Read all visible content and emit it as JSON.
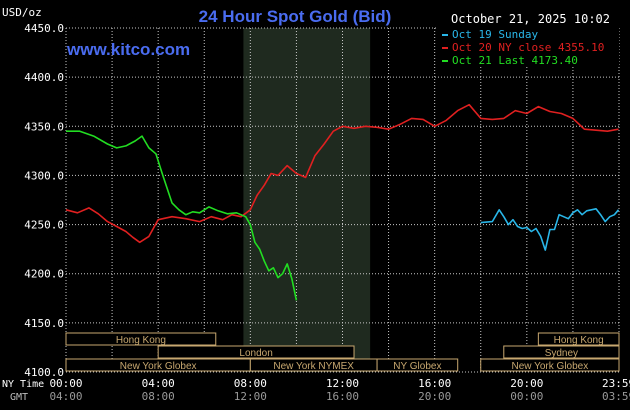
{
  "colors": {
    "background": "#000000",
    "grid": "#c8c8c8",
    "text": "#ffffff",
    "title": "#4a6cf0",
    "site": "#4a6cf0",
    "nymex_band": "#1f2a1f",
    "session_fill": "#000000",
    "session_border": "#c8a870",
    "session_text": "#c8a870"
  },
  "chart_data": {
    "type": "line",
    "title": "24 Hour Spot Gold (Bid)",
    "site": "www.kitco.com",
    "timestamp": "October 21, 2025 10:02",
    "y_unit": "USD/oz",
    "ylim": [
      4100,
      4450
    ],
    "y_ticks": [
      "4450.0",
      "4400.0",
      "4350.0",
      "4300.0",
      "4250.0",
      "4200.0",
      "4150.0",
      "4100.0"
    ],
    "y_tick_values": [
      4450,
      4400,
      4350,
      4300,
      4250,
      4200,
      4150,
      4100
    ],
    "x_hours": [
      0,
      4,
      8,
      12,
      16,
      20,
      23.983
    ],
    "x_ticks_ny": [
      "00:00",
      "04:00",
      "08:00",
      "12:00",
      "16:00",
      "20:00",
      "23:59"
    ],
    "x_ticks_gmt": [
      "04:00",
      "08:00",
      "12:00",
      "16:00",
      "20:00",
      "00:00",
      "03:59"
    ],
    "x_row_label_ny": "NY Time",
    "x_row_label_gmt": "GMT",
    "grid": true,
    "legend_placement": "top-right",
    "highlight_band_hours": [
      7.7,
      13.2
    ],
    "series": [
      {
        "name": "Oct 19 Sunday",
        "color": "#29b6e8",
        "x": [
          18.0,
          18.5,
          18.8,
          19.0,
          19.2,
          19.4,
          19.6,
          19.8,
          20.0,
          20.2,
          20.4,
          20.6,
          20.8,
          21.0,
          21.2,
          21.4,
          21.6,
          21.8,
          22.0,
          22.2,
          22.4,
          22.6,
          22.8,
          23.0,
          23.2,
          23.4,
          23.6,
          23.8,
          23.98
        ],
        "y": [
          4252,
          4253,
          4265,
          4258,
          4250,
          4255,
          4248,
          4246,
          4247,
          4243,
          4246,
          4238,
          4224,
          4245,
          4245,
          4260,
          4258,
          4256,
          4262,
          4265,
          4260,
          4264,
          4265,
          4266,
          4260,
          4253,
          4258,
          4260,
          4265
        ]
      },
      {
        "name": "Oct 20 NY close 4355.10",
        "color": "#e02020",
        "x": [
          0.0,
          0.5,
          1.0,
          1.4,
          1.8,
          2.2,
          2.6,
          2.9,
          3.2,
          3.6,
          4.0,
          4.6,
          5.2,
          5.8,
          6.3,
          6.8,
          7.2,
          7.6,
          8.0,
          8.3,
          8.6,
          8.9,
          9.2,
          9.6,
          10.0,
          10.4,
          10.8,
          11.2,
          11.6,
          12.0,
          12.5,
          13.0,
          13.5,
          14.0,
          14.5,
          15.0,
          15.5,
          16.0,
          16.5,
          17.0,
          17.5,
          18.0,
          18.5,
          19.0,
          19.5,
          20.0,
          20.5,
          21.0,
          21.5,
          22.0,
          22.5,
          23.0,
          23.5,
          23.98
        ],
        "y": [
          4265,
          4262,
          4267,
          4261,
          4253,
          4248,
          4243,
          4237,
          4232,
          4238,
          4255,
          4258,
          4256,
          4253,
          4258,
          4255,
          4260,
          4258,
          4265,
          4280,
          4290,
          4302,
          4300,
          4310,
          4302,
          4298,
          4320,
          4332,
          4345,
          4350,
          4348,
          4350,
          4349,
          4347,
          4352,
          4358,
          4357,
          4350,
          4356,
          4366,
          4372,
          4358,
          4357,
          4358,
          4366,
          4363,
          4370,
          4365,
          4363,
          4358,
          4347,
          4346,
          4345,
          4347
        ]
      },
      {
        "name": "Oct 21 Last 4173.40",
        "color": "#22dd22",
        "x": [
          0.0,
          0.6,
          1.2,
          1.8,
          2.2,
          2.6,
          3.0,
          3.3,
          3.6,
          3.9,
          4.2,
          4.6,
          4.9,
          5.2,
          5.5,
          5.8,
          6.2,
          6.6,
          7.0,
          7.4,
          7.8,
          8.0,
          8.2,
          8.4,
          8.6,
          8.8,
          9.0,
          9.2,
          9.4,
          9.6,
          9.8,
          10.0
        ],
        "y": [
          4345,
          4345,
          4340,
          4332,
          4328,
          4330,
          4335,
          4340,
          4328,
          4322,
          4300,
          4272,
          4265,
          4260,
          4263,
          4262,
          4268,
          4264,
          4261,
          4262,
          4258,
          4250,
          4232,
          4225,
          4213,
          4203,
          4206,
          4196,
          4200,
          4210,
          4195,
          4173
        ]
      }
    ],
    "sessions": [
      {
        "name": "Hong Kong",
        "start": 0.0,
        "end": 6.5,
        "row": 0
      },
      {
        "name": "London",
        "start": 4.0,
        "end": 12.5,
        "row": 1
      },
      {
        "name": "New York Globex",
        "start": 0.0,
        "end": 8.0,
        "row": 2
      },
      {
        "name": "New York NYMEX",
        "start": 8.0,
        "end": 13.5,
        "row": 2
      },
      {
        "name": "NY Globex",
        "start": 13.5,
        "end": 17.0,
        "row": 2
      },
      {
        "name": "Hong Kong",
        "start": 20.5,
        "end": 24.0,
        "row": 0
      },
      {
        "name": "Sydney",
        "start": 19.0,
        "end": 24.0,
        "row": 1
      },
      {
        "name": "New York Globex",
        "start": 18.0,
        "end": 24.0,
        "row": 2
      }
    ]
  }
}
